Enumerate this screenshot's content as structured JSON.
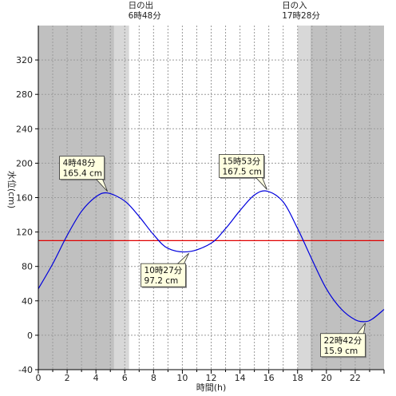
{
  "chart_data": {
    "type": "line",
    "xlabel": "時間(h)",
    "ylabel": "水位(cm)",
    "xlim": [
      0,
      24
    ],
    "ylim": [
      -40,
      360
    ],
    "xticks": [
      0,
      2,
      4,
      6,
      8,
      10,
      12,
      14,
      16,
      18,
      20,
      22
    ],
    "yticks": [
      -40,
      0,
      40,
      80,
      120,
      160,
      200,
      240,
      280,
      320
    ],
    "grid": true,
    "reference_line": {
      "y": 110,
      "color": "#e00000"
    },
    "sunrise": {
      "line1": "日の出",
      "line2": "6時48分",
      "hour": 6.8
    },
    "sunset": {
      "line1": "日の入",
      "line2": "17時28分",
      "hour": 17.47
    },
    "shading": {
      "night_color": "#c0c0c0",
      "twilight_color": "#d8d8d8",
      "day_color": "#ffffff",
      "morning_twilight": [
        5.25,
        6.3
      ],
      "evening_twilight": [
        18.0,
        18.9
      ]
    },
    "series": [
      {
        "color": "#0000dd",
        "x": [
          0,
          1,
          2,
          3,
          4,
          4.8,
          6,
          7,
          8,
          9,
          10.45,
          12,
          13,
          14,
          15,
          15.88,
          17,
          18,
          19,
          20,
          21,
          22,
          22.7,
          23.2,
          24
        ],
        "values": [
          54,
          83,
          116,
          144,
          161,
          165.4,
          156,
          138,
          117,
          101,
          97.2,
          107,
          124,
          145,
          163,
          167.5,
          155,
          124,
          88,
          54,
          31,
          18,
          15.9,
          19,
          30
        ]
      }
    ],
    "annotations": [
      {
        "line1": "4時48分",
        "line2": "165.4 cm",
        "x": 4.8,
        "y": 165.4
      },
      {
        "line1": "10時27分",
        "line2": "97.2 cm",
        "x": 10.45,
        "y": 97.2
      },
      {
        "line1": "15時53分",
        "line2": "167.5 cm",
        "x": 15.88,
        "y": 167.5
      },
      {
        "line1": "22時42分",
        "line2": "15.9 cm",
        "x": 22.7,
        "y": 15.9
      }
    ]
  }
}
